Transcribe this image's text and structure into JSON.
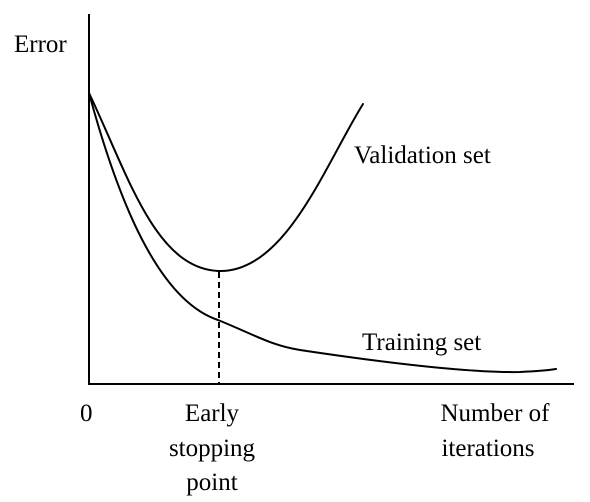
{
  "y_axis_label": "Error",
  "origin_label": "0",
  "x_axis_label": [
    "Number of",
    "iterations"
  ],
  "marker_label": [
    "Early",
    "stopping",
    "point"
  ],
  "curves": {
    "validation_label": "Validation set",
    "training_label": "Training set"
  }
}
